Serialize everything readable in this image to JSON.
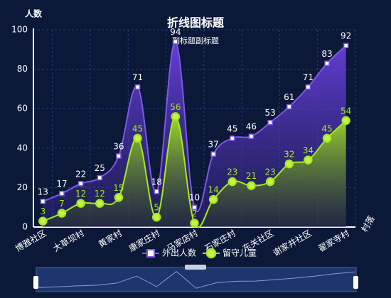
{
  "chart_data": {
    "type": "line",
    "title": "折线图标题",
    "subtitle": "副标题副标题",
    "y_axis_label": "人数",
    "x_axis_label": "村落",
    "categories": [
      "博雅社区",
      null,
      "大草坝村",
      null,
      "黄家村",
      null,
      "康家庄村",
      null,
      "马家店村",
      null,
      "石家庄村",
      null,
      "东关社区",
      null,
      "谢家井社区",
      null,
      "翟家寺村"
    ],
    "series": [
      {
        "name": "外出人数",
        "color": "#7e57e8",
        "values": [
          13,
          17,
          22,
          25,
          36,
          71,
          18,
          94,
          10,
          37,
          45,
          46,
          53,
          61,
          71,
          83,
          92
        ]
      },
      {
        "name": "留守儿童",
        "color": "#a6ea1a",
        "values": [
          3,
          7,
          12,
          12,
          15,
          45,
          5,
          56,
          2,
          14,
          23,
          21,
          23,
          32,
          34,
          45,
          54
        ]
      }
    ],
    "ylim": [
      0,
      100
    ],
    "yticks": [
      0,
      20,
      40,
      60,
      80,
      100
    ],
    "grid": true,
    "legend": "bottom"
  }
}
